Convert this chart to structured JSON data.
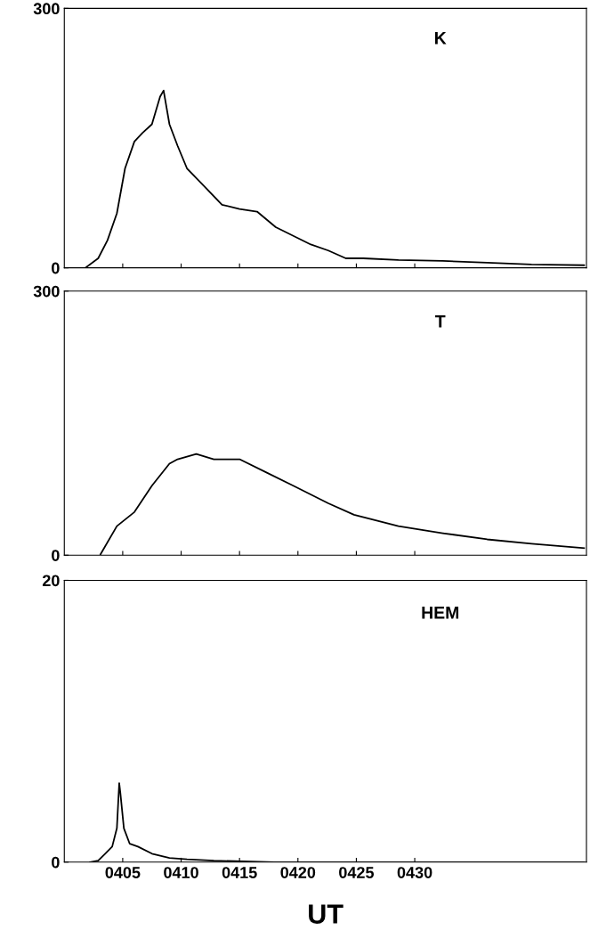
{
  "chart_data": [
    {
      "type": "line",
      "annotations": [
        "K"
      ],
      "tick_labels": "y",
      "xlim": [
        400,
        444.7
      ],
      "xticks": [
        {
          "value": 405,
          "label": null
        },
        {
          "value": 410,
          "label": null
        },
        {
          "value": 415,
          "label": null
        },
        {
          "value": 420,
          "label": null
        },
        {
          "value": 425,
          "label": null
        },
        {
          "value": 430,
          "label": null
        }
      ],
      "ylim": [
        0,
        300
      ],
      "yticks": [
        0,
        300
      ],
      "series": [
        {
          "color": "#000000",
          "x": [
            401.8,
            402.9,
            403.7,
            404.5,
            405.2,
            406.0,
            406.7,
            407.5,
            408.2,
            408.5,
            409.0,
            409.7,
            410.5,
            412.0,
            413.5,
            415.0,
            416.5,
            418.1,
            419.6,
            421.1,
            422.6,
            424.1,
            425.6,
            428.6,
            432.4,
            436.2,
            440.0,
            444.5
          ],
          "values": [
            0,
            11,
            32,
            63,
            115,
            146,
            156,
            166,
            198,
            205,
            166,
            141,
            115,
            94,
            73,
            68,
            65,
            47,
            37,
            27,
            20,
            11,
            11,
            9,
            8,
            6,
            4,
            3
          ]
        }
      ]
    },
    {
      "type": "line",
      "annotations": [
        "T"
      ],
      "tick_labels": "y",
      "xlim": [
        400,
        444.7
      ],
      "xticks": [
        {
          "value": 405,
          "label": null
        },
        {
          "value": 410,
          "label": null
        },
        {
          "value": 415,
          "label": null
        },
        {
          "value": 420,
          "label": null
        },
        {
          "value": 425,
          "label": null
        },
        {
          "value": 430,
          "label": null
        }
      ],
      "ylim": [
        0,
        300
      ],
      "yticks": [
        0,
        300
      ],
      "series": [
        {
          "color": "#000000",
          "x": [
            403.1,
            404.5,
            406.0,
            407.5,
            409.0,
            409.7,
            411.3,
            412.8,
            415.0,
            417.3,
            419.6,
            422.6,
            424.8,
            428.6,
            432.4,
            436.2,
            440.0,
            444.5
          ],
          "values": [
            1,
            33,
            49,
            79,
            104,
            109,
            115,
            109,
            109,
            94,
            79,
            59,
            46,
            33,
            25,
            18,
            13,
            8
          ]
        }
      ]
    },
    {
      "type": "line",
      "annotations": [
        "HEM"
      ],
      "xlabel": "UT",
      "xlim": [
        400,
        444.7
      ],
      "xticks": [
        {
          "value": 405,
          "label": "0405"
        },
        {
          "value": 410,
          "label": "0410"
        },
        {
          "value": 415,
          "label": "0415"
        },
        {
          "value": 420,
          "label": "0420"
        },
        {
          "value": 425,
          "label": "0425"
        },
        {
          "value": 430,
          "label": "0430"
        }
      ],
      "ylim": [
        0,
        20
      ],
      "yticks": [
        0,
        20
      ],
      "series": [
        {
          "color": "#000000",
          "x": [
            402.2,
            402.9,
            403.5,
            404.1,
            404.5,
            404.7,
            404.8,
            405.1,
            405.6,
            406.3,
            407.5,
            409.0,
            410.5,
            412.8,
            418,
            424,
            430,
            436,
            444.5
          ],
          "values": [
            0,
            0.1,
            0.6,
            1.1,
            2.4,
            5.6,
            4.9,
            2.4,
            1.3,
            1.1,
            0.6,
            0.3,
            0.2,
            0.1,
            0,
            0,
            0,
            0,
            0
          ]
        }
      ]
    }
  ]
}
